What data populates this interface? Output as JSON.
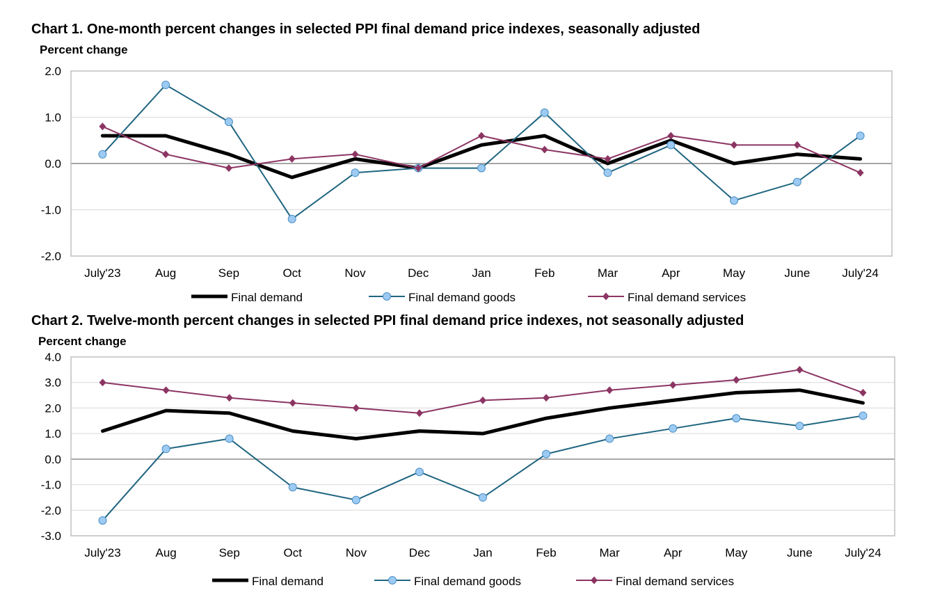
{
  "colors": {
    "final_demand": "#000000",
    "goods_line": "#1f6580",
    "goods_marker": "#9ccaf2",
    "services": "#8c3563",
    "grid": "#d9d9d9",
    "zero": "#a6a6a6"
  },
  "chart_data": [
    {
      "type": "line",
      "title": "Chart 1. One-month percent changes in selected PPI final demand price indexes, seasonally adjusted",
      "ylabel": "Percent change",
      "xlabel": "",
      "ylim": [
        -2.0,
        2.0
      ],
      "yticks": [
        "2.0",
        "1.0",
        "0.0",
        "-1.0",
        "-2.0"
      ],
      "grid": true,
      "legend": "bottom",
      "categories": [
        "July'23",
        "Aug",
        "Sep",
        "Oct",
        "Nov",
        "Dec",
        "Jan",
        "Feb",
        "Mar",
        "Apr",
        "May",
        "June",
        "July'24"
      ],
      "series": [
        {
          "name": "Final demand",
          "values": [
            0.6,
            0.6,
            0.2,
            -0.3,
            0.1,
            -0.1,
            0.4,
            0.6,
            0.0,
            0.5,
            0.0,
            0.2,
            0.1
          ]
        },
        {
          "name": "Final demand goods",
          "values": [
            0.2,
            1.7,
            0.9,
            -1.2,
            -0.2,
            -0.1,
            -0.1,
            1.1,
            -0.2,
            0.4,
            -0.8,
            -0.4,
            0.6
          ]
        },
        {
          "name": "Final demand services",
          "values": [
            0.8,
            0.2,
            -0.1,
            0.1,
            0.2,
            -0.1,
            0.6,
            0.3,
            0.1,
            0.6,
            0.4,
            0.4,
            -0.2
          ]
        }
      ]
    },
    {
      "type": "line",
      "title": "Chart 2. Twelve-month percent changes in selected PPI final demand price indexes, not seasonally adjusted",
      "ylabel": "Percent change",
      "xlabel": "",
      "ylim": [
        -3.0,
        4.0
      ],
      "yticks": [
        "4.0",
        "3.0",
        "2.0",
        "1.0",
        "0.0",
        "-1.0",
        "-2.0",
        "-3.0"
      ],
      "grid": true,
      "legend": "bottom",
      "categories": [
        "July'23",
        "Aug",
        "Sep",
        "Oct",
        "Nov",
        "Dec",
        "Jan",
        "Feb",
        "Mar",
        "Apr",
        "May",
        "June",
        "July'24"
      ],
      "series": [
        {
          "name": "Final demand",
          "values": [
            1.1,
            1.9,
            1.8,
            1.1,
            0.8,
            1.1,
            1.0,
            1.6,
            2.0,
            2.3,
            2.6,
            2.7,
            2.2
          ]
        },
        {
          "name": "Final demand goods",
          "values": [
            -2.4,
            0.4,
            0.8,
            -1.1,
            -1.6,
            -0.5,
            -1.5,
            0.2,
            0.8,
            1.2,
            1.6,
            1.3,
            1.7
          ]
        },
        {
          "name": "Final demand services",
          "values": [
            3.0,
            2.7,
            2.4,
            2.2,
            2.0,
            1.8,
            2.3,
            2.4,
            2.7,
            2.9,
            3.1,
            3.5,
            2.6
          ]
        }
      ]
    }
  ]
}
